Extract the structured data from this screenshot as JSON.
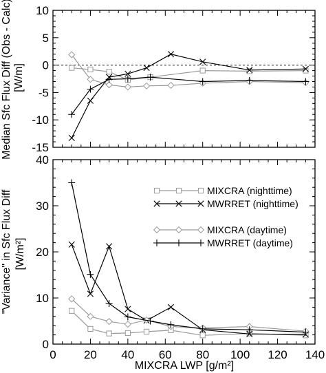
{
  "chart_data": [
    {
      "type": "line",
      "id": "top",
      "ylabel_line1": "Median Sfc Flux Diff (Obs - Calc)",
      "ylabel_line2": "[W/m]",
      "ylim": [
        -15,
        10
      ],
      "yticks": [
        -15,
        -10,
        -5,
        0,
        5,
        10
      ],
      "xlim": [
        0,
        140
      ],
      "xticks": [
        0,
        20,
        40,
        60,
        80,
        100,
        120,
        140
      ],
      "show_xtick_labels": false,
      "zero_line": true,
      "series": [
        {
          "key": "mixcra_night",
          "color": "#9a9a9a",
          "marker": "square",
          "x": [
            10,
            20,
            30,
            40,
            52,
            80,
            105,
            135
          ],
          "y": [
            -0.5,
            -0.8,
            -1.2,
            -2.7,
            -2.2,
            -1.0,
            -1.1,
            -1.0
          ]
        },
        {
          "key": "mwrret_night",
          "color": "#000000",
          "marker": "x",
          "x": [
            10,
            20,
            30,
            40,
            50,
            63,
            80,
            105,
            135
          ],
          "y": [
            -13.3,
            -6.5,
            -2.2,
            -1.6,
            -0.5,
            2.0,
            0.6,
            -0.9,
            -0.7
          ]
        },
        {
          "key": "mixcra_day",
          "color": "#9a9a9a",
          "marker": "diamond",
          "x": [
            10,
            20,
            30,
            40,
            50,
            63,
            80,
            105,
            135
          ],
          "y": [
            1.9,
            -2.6,
            -3.6,
            -4.0,
            -3.8,
            -3.7,
            -3.3,
            -3.0,
            -3.2
          ]
        },
        {
          "key": "mwrret_day",
          "color": "#000000",
          "marker": "plus",
          "x": [
            10,
            20,
            30,
            40,
            52,
            80,
            105,
            135
          ],
          "y": [
            -9.0,
            -4.4,
            -2.6,
            -2.5,
            -2.2,
            -3.0,
            -2.8,
            -3.0
          ]
        }
      ]
    },
    {
      "type": "line",
      "id": "bottom",
      "ylabel_line1": "\"Variance\" in Sfc Flux Diff",
      "ylabel_line2": "[W/m²]",
      "xlabel": "MIXCRA LWP [g/m²]",
      "ylim": [
        0,
        40
      ],
      "yticks": [
        0,
        10,
        20,
        30,
        40
      ],
      "xlim": [
        0,
        140
      ],
      "xticks": [
        0,
        20,
        40,
        60,
        80,
        100,
        120,
        140
      ],
      "show_xtick_labels": true,
      "legend_position": "top-right",
      "series": [
        {
          "key": "mixcra_night",
          "name": "MIXCRA (nighttime)",
          "color": "#9a9a9a",
          "marker": "square",
          "x": [
            10,
            20,
            30,
            40,
            50,
            63,
            80,
            105,
            135
          ],
          "y": [
            7.2,
            3.3,
            2.3,
            2.4,
            2.7,
            3.0,
            1.9,
            2.3,
            1.9
          ]
        },
        {
          "key": "mwrret_night",
          "name": "MWRRET (nighttime)",
          "color": "#000000",
          "marker": "x",
          "x": [
            10,
            20,
            30,
            40,
            50,
            63,
            80,
            105,
            135
          ],
          "y": [
            21.6,
            10.9,
            21.2,
            7.6,
            5.1,
            8.0,
            3.1,
            2.2,
            2.1
          ]
        },
        {
          "key": "mixcra_day",
          "name": "MIXCRA (daytime)",
          "color": "#9a9a9a",
          "marker": "diamond",
          "x": [
            10,
            20,
            30,
            40,
            50,
            63,
            80,
            105,
            135
          ],
          "y": [
            9.8,
            6.0,
            4.9,
            4.3,
            5.2,
            3.8,
            3.5,
            3.8,
            2.8
          ]
        },
        {
          "key": "mwrret_day",
          "name": "MWRRET (daytime)",
          "color": "#000000",
          "marker": "plus",
          "x": [
            10,
            20,
            30,
            40,
            52,
            63,
            80,
            105,
            135
          ],
          "y": [
            35.0,
            15.1,
            8.8,
            5.9,
            5.0,
            4.2,
            3.3,
            3.1,
            2.6
          ]
        }
      ]
    }
  ]
}
